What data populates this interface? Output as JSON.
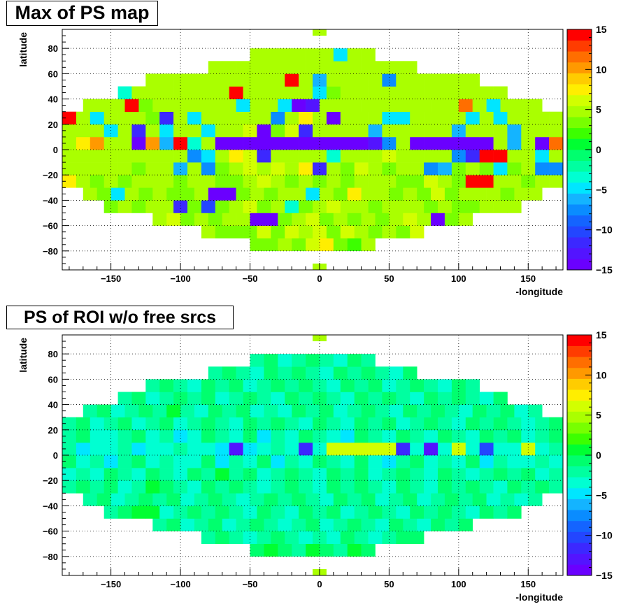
{
  "colors": {
    "palette": [
      "#6a00ff",
      "#5314ff",
      "#3c28ff",
      "#2346ff",
      "#1464ff",
      "#0a8cff",
      "#14b4ff",
      "#00e6ff",
      "#00ffd2",
      "#00ffa0",
      "#00ff6e",
      "#00ff32",
      "#3cff00",
      "#78ff00",
      "#aaff00",
      "#d2ff00",
      "#ffee00",
      "#ffcc00",
      "#ff9900",
      "#ff6e00",
      "#ff3c00",
      "#ff0000"
    ],
    "frame": "#000000",
    "grid": "#000000"
  },
  "chart_data": [
    {
      "type": "heatmap",
      "title": "Max of PS map",
      "xlabel": "-longitude",
      "ylabel": "latitude",
      "xlim": [
        -185,
        175
      ],
      "ylim": [
        -95,
        95
      ],
      "x_ticks": [
        -150,
        -100,
        -50,
        0,
        50,
        100,
        150
      ],
      "y_ticks": [
        -80,
        -60,
        -40,
        -20,
        0,
        20,
        40,
        60,
        80
      ],
      "z_range": [
        -15,
        15
      ],
      "z_ticks": [
        -15,
        -10,
        -5,
        0,
        5,
        10,
        15
      ],
      "grid": true,
      "bin_size_deg": 10,
      "lat_bins_deg": [
        -90,
        -80,
        -70,
        -60,
        -50,
        -40,
        -30,
        -20,
        -10,
        0,
        10,
        20,
        30,
        40,
        50,
        60,
        70,
        80,
        90
      ],
      "values": [
        [],
        [
          3,
          3,
          5,
          4,
          6,
          7,
          4,
          2,
          5
        ],
        [
          5,
          4,
          3,
          4,
          6,
          3,
          6,
          5,
          6,
          4,
          6,
          5,
          4,
          5,
          4,
          6
        ],
        [
          5,
          6,
          3,
          5,
          4,
          5,
          5,
          -14,
          -14,
          4,
          5,
          6,
          4,
          5,
          4,
          5,
          4,
          5,
          6,
          5,
          -14,
          4,
          5
        ],
        [
          4,
          5,
          4,
          5,
          5,
          -12,
          4,
          -10,
          4,
          5,
          6,
          4,
          5,
          -3,
          4,
          5,
          6,
          5,
          5,
          4,
          5,
          5,
          5,
          4,
          5,
          4,
          4,
          5,
          5,
          5
        ],
        [
          5,
          4,
          -5,
          5,
          4,
          5,
          4,
          4,
          5,
          -14,
          -14,
          4,
          5,
          4,
          5,
          5,
          -5,
          5,
          4,
          8,
          5,
          5,
          4,
          5,
          4,
          6,
          4,
          5,
          5,
          5,
          4,
          5,
          5
        ],
        [
          5,
          4,
          -5,
          5,
          4,
          7,
          5,
          4,
          5,
          4,
          5,
          5,
          5,
          4,
          5,
          5,
          4,
          4,
          5,
          6,
          5,
          4,
          5,
          4,
          5,
          4,
          5,
          5,
          5,
          4,
          4,
          6,
          5,
          4,
          15,
          15,
          5,
          5,
          4,
          5,
          5,
          5,
          -5,
          5,
          5,
          5
        ],
        [
          -12,
          -12,
          4,
          -5,
          5,
          5,
          5,
          5,
          5,
          5,
          4,
          5,
          5,
          -6,
          5,
          -7,
          4,
          5,
          6,
          5,
          6,
          5,
          8,
          -12,
          5,
          4,
          6,
          5,
          4,
          5,
          5,
          -8,
          -6,
          4,
          5,
          4,
          -5,
          4,
          5,
          -7,
          -7,
          4,
          5,
          4,
          4,
          5
        ],
        [
          -15,
          5,
          8,
          -5,
          5,
          5,
          5,
          5,
          5,
          5,
          5,
          5,
          5,
          5,
          -7,
          -5,
          5,
          7,
          6,
          -12,
          5,
          5,
          5,
          5,
          -4,
          5,
          5,
          5,
          6,
          5,
          5,
          5,
          5,
          -7,
          -11,
          15,
          15,
          5,
          5,
          -5,
          5,
          5,
          -3,
          -5,
          5,
          -15
        ],
        [
          -15,
          -8,
          5,
          7,
          10,
          5,
          5,
          -15,
          10,
          -6,
          14,
          -3,
          5,
          -15,
          -15,
          -15,
          -15,
          -15,
          -15,
          -15,
          -15,
          -15,
          -15,
          -15,
          -13,
          -8,
          5,
          -15,
          -15,
          -15,
          -15,
          -15,
          -15,
          5,
          -6,
          5,
          -14,
          12,
          15,
          15
        ],
        [
          5,
          5,
          -6,
          7,
          5,
          5,
          5,
          5,
          -5,
          5,
          -12,
          5,
          -5,
          5,
          5,
          -5,
          5,
          5,
          6,
          -14,
          4,
          6,
          -12,
          5,
          5,
          5,
          5,
          -6,
          5,
          5,
          5,
          5,
          5,
          -6,
          5,
          5,
          5,
          -6,
          5,
          5,
          5,
          5,
          4,
          5,
          -6,
          -6
        ],
        [
          5,
          5,
          5,
          -14,
          15,
          5,
          -5,
          5,
          5,
          5,
          4,
          -12,
          5,
          -5,
          5,
          5,
          5,
          5,
          5,
          -7,
          5,
          8,
          5,
          -14,
          5,
          5,
          5,
          -5,
          -5,
          5,
          5,
          5,
          5,
          -5,
          5,
          -5,
          5,
          5,
          5,
          5,
          5,
          5,
          5,
          5
        ],
        [
          5,
          5,
          5,
          15,
          4,
          5,
          5,
          5,
          5,
          5,
          5,
          -5,
          5,
          5,
          -5,
          -14,
          -13,
          5,
          5,
          5,
          5,
          5,
          5,
          5,
          5,
          5,
          5,
          12,
          5,
          -5,
          5,
          5,
          5
        ],
        [
          -4,
          5,
          5,
          5,
          5,
          5,
          5,
          5,
          15,
          5,
          5,
          5,
          5,
          5,
          -5,
          4,
          5,
          5,
          5,
          5,
          5,
          5,
          5,
          5,
          5,
          5,
          5,
          5
        ],
        [
          5,
          5,
          5,
          5,
          5,
          5,
          5,
          5,
          5,
          5,
          15,
          5,
          -6,
          5,
          5,
          5,
          5,
          -8,
          5,
          5,
          5,
          5,
          5,
          5
        ],
        [
          5,
          5,
          5,
          5,
          5,
          5,
          5,
          5,
          5,
          5,
          5,
          5,
          5,
          5,
          5
        ],
        [
          5,
          5,
          5,
          5,
          5,
          5,
          -5,
          5,
          5
        ],
        []
      ]
    },
    {
      "type": "heatmap",
      "title": "PS of ROI w/o free srcs",
      "xlabel": "-longitude",
      "ylabel": "latitude",
      "xlim": [
        -185,
        175
      ],
      "ylim": [
        -95,
        95
      ],
      "x_ticks": [
        -150,
        -100,
        -50,
        0,
        50,
        100,
        150
      ],
      "y_ticks": [
        -80,
        -60,
        -40,
        -20,
        0,
        20,
        40,
        60,
        80
      ],
      "z_range": [
        -15,
        15
      ],
      "z_ticks": [
        -15,
        -10,
        -5,
        0,
        5,
        10,
        15
      ],
      "grid": true,
      "bin_size_deg": 10,
      "lat_bins_deg": [
        -90,
        -80,
        -70,
        -60,
        -50,
        -40,
        -30,
        -20,
        -10,
        0,
        10,
        20,
        30,
        40,
        50,
        60,
        70,
        80,
        90
      ],
      "values": [
        [],
        [
          -1,
          0,
          -1,
          -2,
          0,
          -1,
          -2,
          0,
          -1
        ],
        [
          -2,
          -1,
          -2,
          -3,
          -2,
          -1,
          -2,
          -3,
          -2,
          -3,
          -1,
          -2,
          -3,
          -2,
          -1,
          -1
        ],
        [
          -2,
          -1,
          -3,
          -2,
          -1,
          -3,
          -2,
          -1,
          -2,
          -4,
          -2,
          -1,
          -3,
          -2,
          -1,
          -2,
          -3,
          -1,
          -2,
          -3,
          -1,
          -2,
          -1
        ],
        [
          -2,
          -1,
          1,
          0,
          -3,
          -2,
          -1,
          -2,
          -1,
          -2,
          -4,
          -1,
          -2,
          -3,
          -1,
          -2,
          -1,
          -3,
          -2,
          -1,
          -2,
          -3,
          -1,
          -2,
          -1,
          -2,
          -3,
          -1,
          -2,
          -1
        ],
        [
          -2,
          -1,
          -3,
          -2,
          -1,
          -2,
          -1,
          -3,
          -2,
          -1,
          -2,
          -3,
          -2,
          -1,
          -2,
          -1,
          -2,
          -3,
          -1,
          -2,
          -1,
          -4,
          -2,
          -1,
          -3,
          -2,
          -1,
          -2,
          -1,
          -3,
          -2,
          -4,
          -2
        ],
        [
          -2,
          1,
          -2,
          -1,
          -3,
          -2,
          -1,
          -2,
          -1,
          -3,
          -2,
          1,
          -1,
          -2,
          -3,
          -1,
          -2,
          -1,
          -2,
          -3,
          -2,
          -1,
          -2,
          -3,
          -1,
          -2,
          -1,
          -2,
          -3,
          -1,
          -2,
          -3,
          -1,
          -2,
          -1,
          -2,
          -3,
          -1,
          -2,
          -1,
          -2,
          -1,
          -3,
          -2,
          1,
          1
        ],
        [
          -3,
          -2,
          -5,
          -2,
          -1,
          -3,
          -2,
          -4,
          -1,
          -2,
          -3,
          -1,
          -2,
          -3,
          -1,
          -2,
          1,
          -2,
          -1,
          -3,
          -2,
          -1,
          -2,
          -4,
          -1,
          -2,
          -1,
          -3,
          -2,
          -1,
          -2,
          -3,
          -1,
          -2,
          -4,
          -2,
          -1,
          -2,
          -1,
          -3,
          -2,
          -4,
          -1,
          -2,
          -1,
          -2
        ],
        [
          -2,
          -4,
          -2,
          -5,
          -3,
          -1,
          -4,
          -2,
          -5,
          -2,
          -1,
          -4,
          -2,
          -3,
          -4,
          -1,
          -5,
          -2,
          -3,
          -1,
          -5,
          -2,
          -3,
          -1,
          -2,
          -4,
          -1,
          -3,
          -5,
          -2,
          -1,
          -3,
          -2,
          -4,
          -1,
          -5,
          -2,
          -3,
          -4,
          -2,
          -3,
          -1,
          -5,
          -2,
          -1,
          1
        ],
        [
          -4,
          -3,
          -2,
          -5,
          -4,
          -3,
          -2,
          -5,
          -3,
          -4,
          -2,
          -3,
          -4,
          -5,
          -13,
          -5,
          -4,
          -2,
          -3,
          -11,
          -4,
          6,
          6,
          6,
          6,
          6,
          -12,
          -3,
          -13,
          -3,
          6,
          -3,
          -10,
          -4,
          -3,
          6,
          -3,
          -2,
          -4,
          1
        ],
        [
          -2,
          -1,
          -2,
          -3,
          -1,
          -2,
          -1,
          -3,
          -4,
          -2,
          -1,
          -3,
          -2,
          -5,
          -3,
          -1,
          -2,
          -4,
          -1,
          -5,
          -2,
          -3,
          -1,
          -2,
          -3,
          -5,
          -1,
          -2,
          -4,
          -1,
          -2,
          -3,
          -1,
          -2,
          -3,
          -1,
          -2,
          -1,
          -3,
          -2,
          -1,
          -2,
          -3,
          -1,
          -2,
          -1
        ],
        [
          -2,
          -1,
          -3,
          -2,
          -1,
          -2,
          -1,
          -3,
          -2,
          -1,
          -4,
          -2,
          -1,
          -3,
          -2,
          -1,
          -2,
          -3,
          -1,
          -2,
          -1,
          -2,
          -3,
          -1,
          -2,
          -4,
          -1,
          -2,
          -1,
          -3,
          -2,
          -1,
          -2,
          -3,
          -1,
          -2,
          -1,
          -2,
          -3,
          -2,
          -1,
          -2,
          -3,
          -1,
          -2,
          -1
        ],
        [
          -2,
          -1,
          -3,
          -2,
          -1,
          -2,
          1,
          -2,
          -3,
          -1,
          -2,
          -1,
          -3,
          -2,
          -4,
          -1,
          -2,
          -1,
          -3,
          -2,
          -1,
          -2,
          -3,
          -1,
          -2,
          -1,
          -2,
          -3,
          -1,
          -2,
          -1,
          -3,
          -2
        ],
        [
          -2,
          -1,
          -3,
          -2,
          -1,
          -2,
          -1,
          -3,
          -2,
          -1,
          -2,
          -3,
          -1,
          -2,
          -1,
          -2,
          -3,
          -1,
          -2,
          -1,
          -2,
          -3,
          -1,
          -2,
          -1,
          -2,
          -3,
          -1
        ],
        [
          -2,
          -1,
          -2,
          -3,
          -1,
          -2,
          -1,
          -3,
          -2,
          -1,
          -2,
          -1,
          -2,
          -3,
          -1,
          -2,
          -1,
          -3,
          -2,
          -1,
          -2,
          -3,
          -1,
          -2
        ],
        [
          -2,
          -1,
          -2,
          -3,
          -1,
          -2,
          -1,
          -2,
          -3,
          -1,
          -2,
          -1,
          -2,
          -3,
          -1
        ],
        [
          -2,
          -1,
          -3,
          -2,
          -1,
          -2,
          -3,
          -1,
          -2
        ],
        []
      ]
    }
  ]
}
